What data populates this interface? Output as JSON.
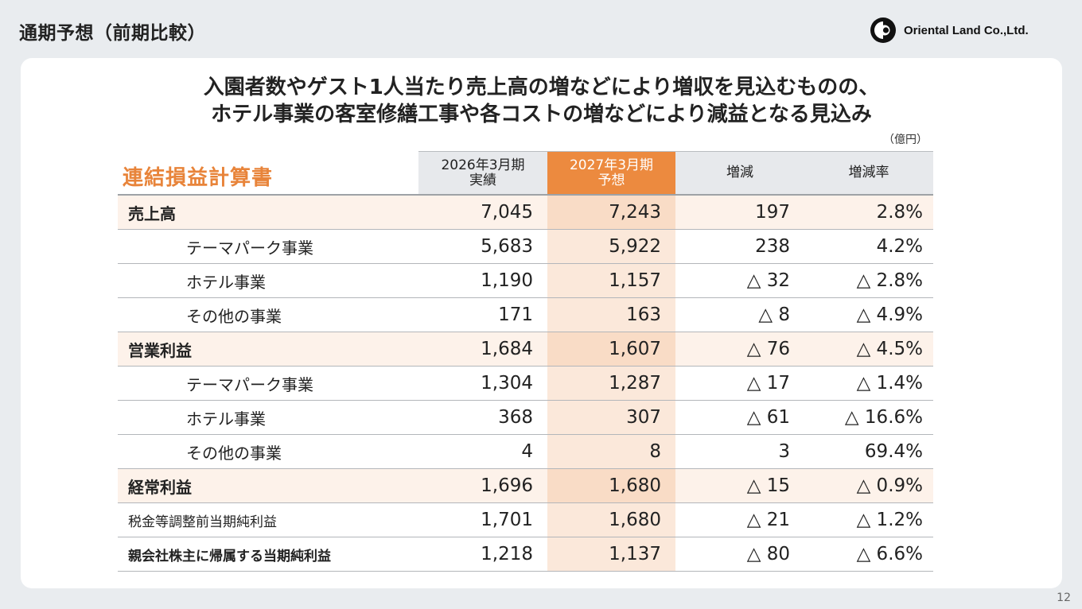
{
  "page": {
    "title": "通期予想（前期比較）",
    "page_number": "12",
    "logo_text": "Oriental Land Co.,Ltd."
  },
  "headline": {
    "line1": "入園者数やゲスト1人当たり売上高の増などにより増収を見込むものの、",
    "line2": "ホテル事業の客室修繕工事や各コストの増などにより減益となる見込み"
  },
  "table": {
    "title": "連結損益計算書",
    "unit": "（億円）",
    "headers": {
      "prev_line1": "2026年3月期",
      "prev_line2": "実績",
      "fcst_line1": "2027年3月期",
      "fcst_line2": "予想",
      "change": "増減",
      "change_rate": "増減率"
    },
    "rows": [
      {
        "label": "売上高",
        "type": "major",
        "prev": "7,045",
        "fcst": "7,243",
        "change": "197",
        "rate": "2.8%"
      },
      {
        "label": "テーマパーク事業",
        "type": "sub",
        "prev": "5,683",
        "fcst": "5,922",
        "change": "238",
        "rate": "4.2%"
      },
      {
        "label": "ホテル事業",
        "type": "sub",
        "prev": "1,190",
        "fcst": "1,157",
        "change": "△ 32",
        "rate": "△ 2.8%"
      },
      {
        "label": "その他の事業",
        "type": "sub",
        "prev": "171",
        "fcst": "163",
        "change": "△ 8",
        "rate": "△ 4.9%"
      },
      {
        "label": "営業利益",
        "type": "major",
        "prev": "1,684",
        "fcst": "1,607",
        "change": "△ 76",
        "rate": "△ 4.5%"
      },
      {
        "label": "テーマパーク事業",
        "type": "sub",
        "prev": "1,304",
        "fcst": "1,287",
        "change": "△ 17",
        "rate": "△ 1.4%"
      },
      {
        "label": "ホテル事業",
        "type": "sub",
        "prev": "368",
        "fcst": "307",
        "change": "△ 61",
        "rate": "△ 16.6%"
      },
      {
        "label": "その他の事業",
        "type": "sub",
        "prev": "4",
        "fcst": "8",
        "change": "3",
        "rate": "69.4%"
      },
      {
        "label": "経常利益",
        "type": "major",
        "prev": "1,696",
        "fcst": "1,680",
        "change": "△ 15",
        "rate": "△ 0.9%"
      },
      {
        "label": "税金等調整前当期純利益",
        "type": "minor",
        "prev": "1,701",
        "fcst": "1,680",
        "change": "△ 21",
        "rate": "△ 1.2%"
      },
      {
        "label": "親会社株主に帰属する当期純利益",
        "type": "bold",
        "prev": "1,218",
        "fcst": "1,137",
        "change": "△ 80",
        "rate": "△ 6.6%"
      }
    ]
  }
}
